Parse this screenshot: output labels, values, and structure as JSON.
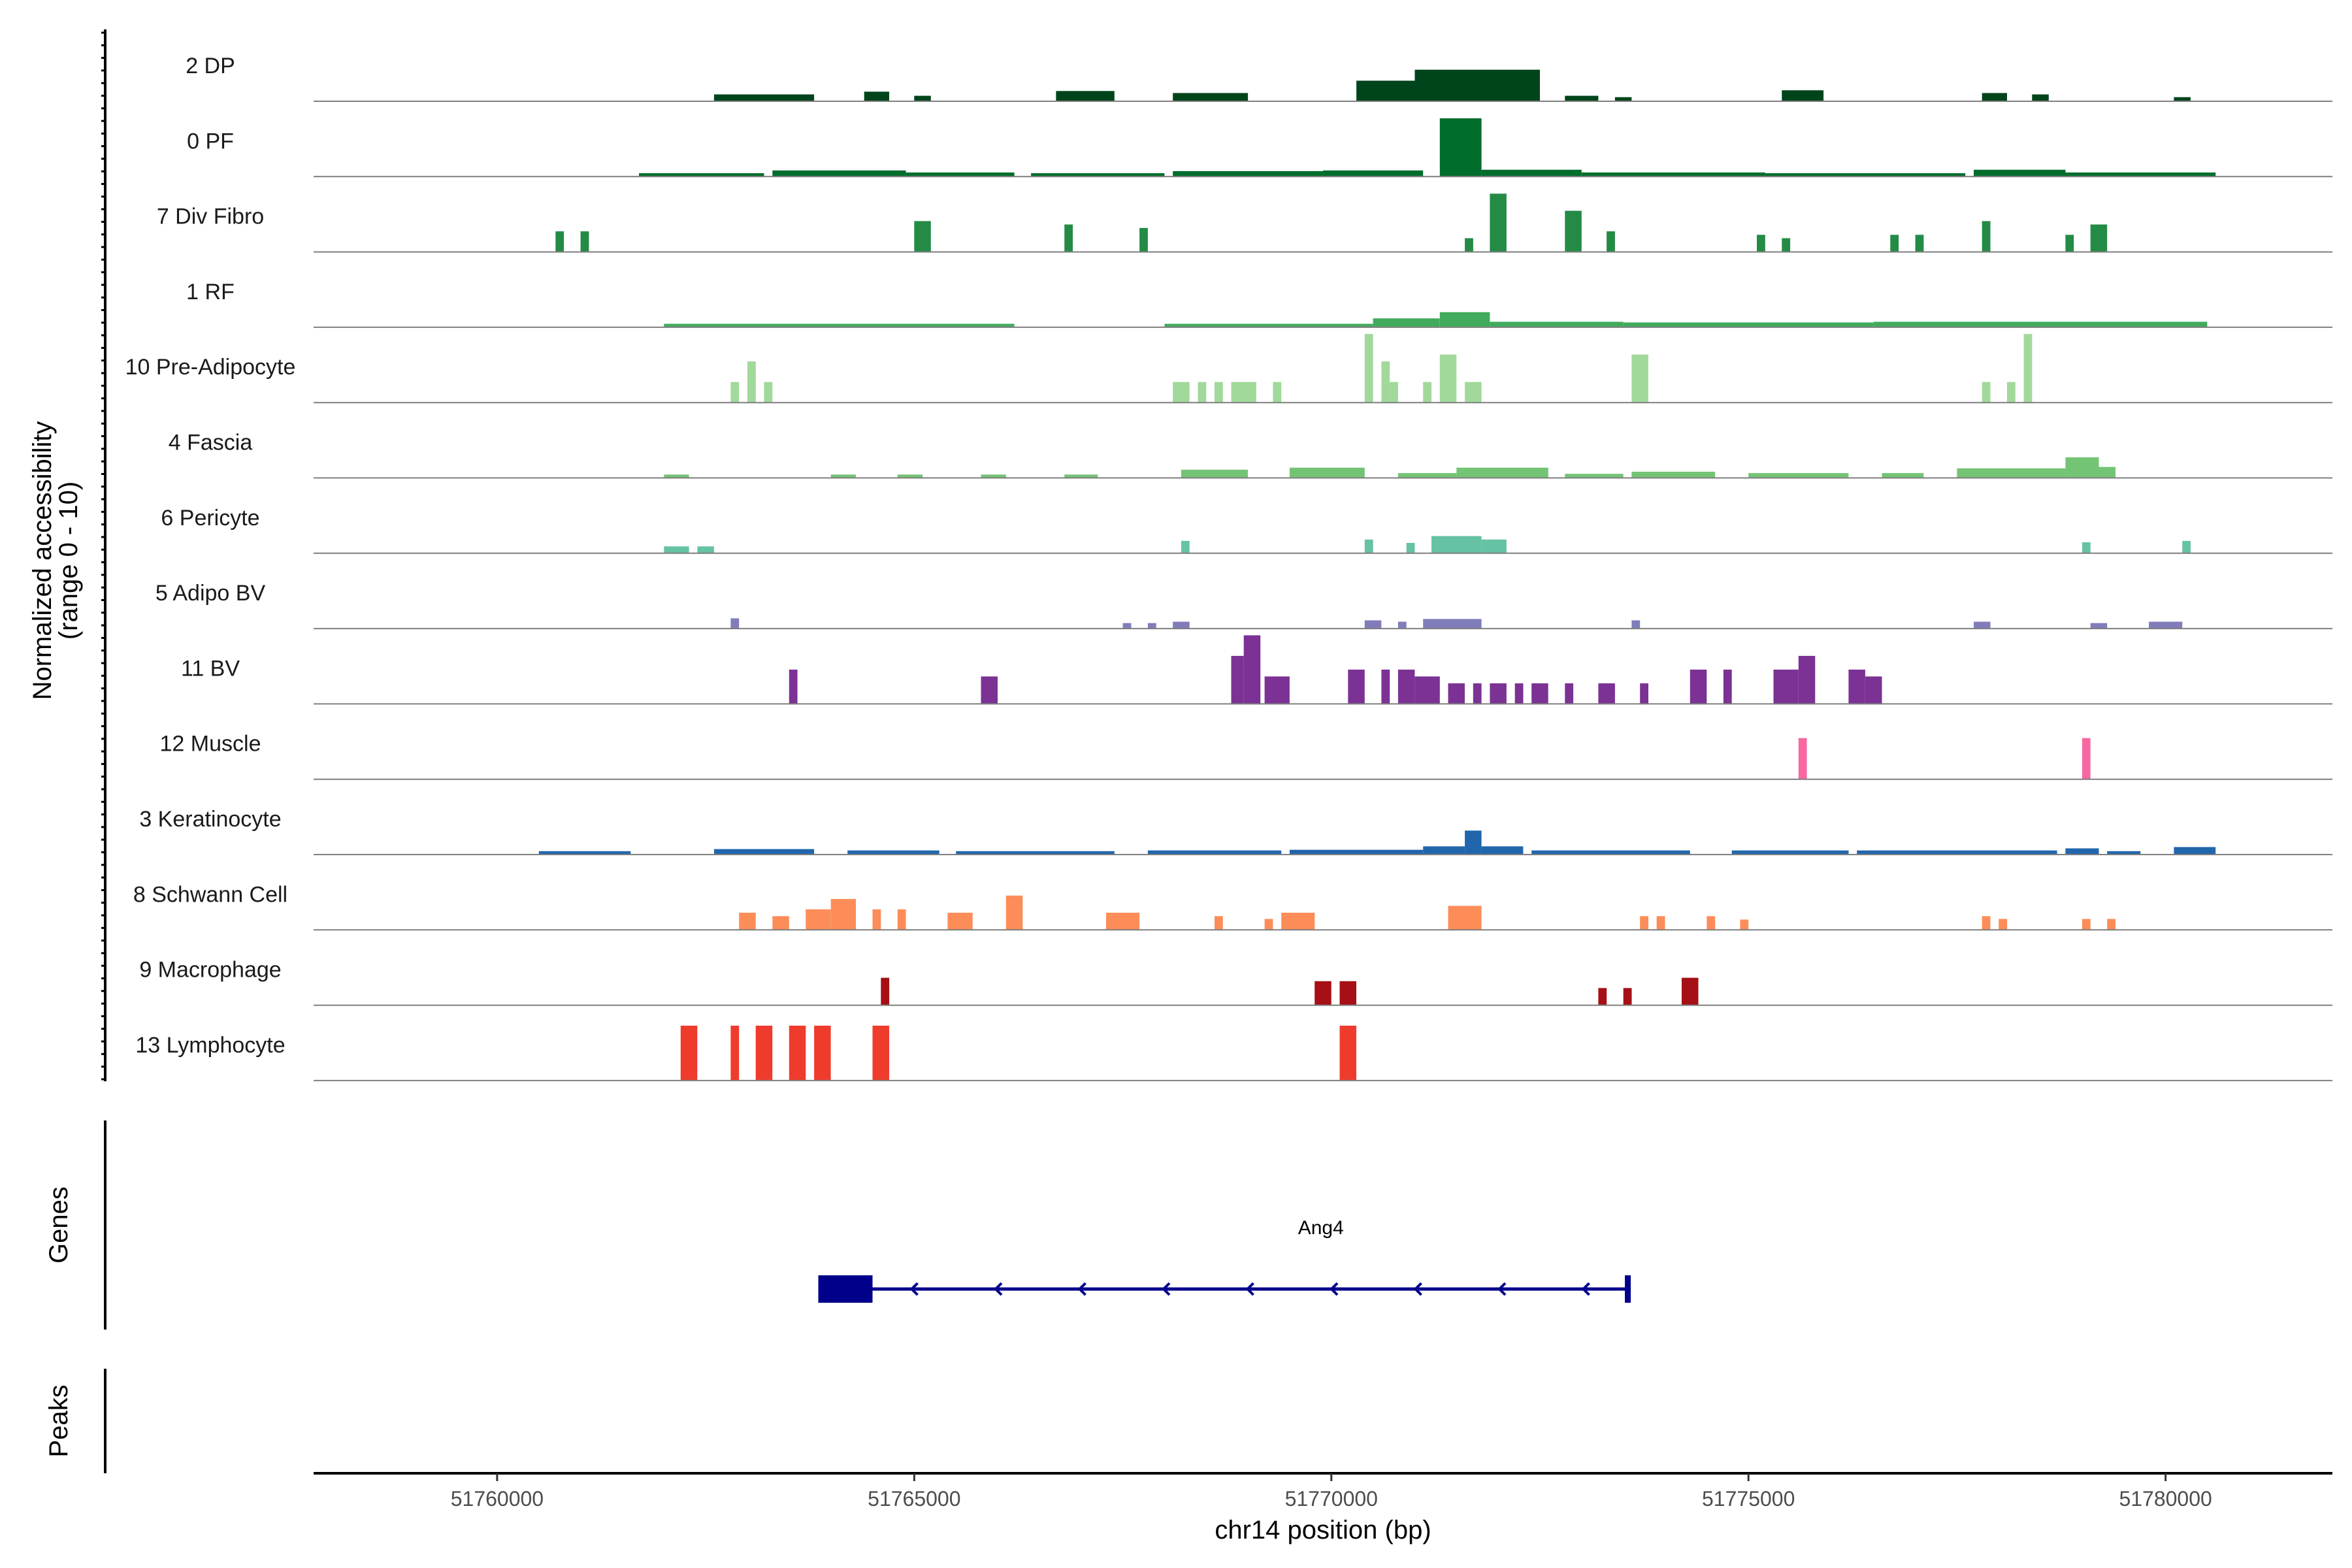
{
  "chart_data": {
    "type": "area",
    "title": "",
    "ylabel": [
      "Normalized accessibility",
      "(range 0 - 10)"
    ],
    "xlabel": "chr14 position (bp)",
    "xlim": [
      51757800,
      51782000
    ],
    "xticks": [
      "51760000",
      "51765000",
      "51770000",
      "51775000",
      "51780000"
    ],
    "xtick_values": [
      51760000,
      51765000,
      51770000,
      51775000,
      51780000
    ],
    "yrange": [
      0,
      10
    ],
    "tracks": [
      {
        "name": "2 DP",
        "color": "#00441b",
        "segments": [
          [
            51762600,
            51763800,
            1
          ],
          [
            51764400,
            51764700,
            1.4
          ],
          [
            51765000,
            51765200,
            0.8
          ],
          [
            51766700,
            51767400,
            1.5
          ],
          [
            51768100,
            51769000,
            1.2
          ],
          [
            51770300,
            51771000,
            3.0
          ],
          [
            51771000,
            51772500,
            4.6
          ],
          [
            51772800,
            51773200,
            0.8
          ],
          [
            51773400,
            51773600,
            0.6
          ],
          [
            51775400,
            51775900,
            1.6
          ],
          [
            51777800,
            51778100,
            1.2
          ],
          [
            51778400,
            51778600,
            1.0
          ],
          [
            51780100,
            51780300,
            0.6
          ]
        ]
      },
      {
        "name": "0 PF",
        "color": "#006d2c",
        "segments": [
          [
            51761700,
            51763200,
            0.5
          ],
          [
            51763300,
            51764900,
            0.9
          ],
          [
            51764900,
            51766200,
            0.6
          ],
          [
            51766400,
            51768000,
            0.5
          ],
          [
            51768100,
            51769900,
            0.8
          ],
          [
            51769900,
            51771100,
            0.9
          ],
          [
            51771300,
            51771800,
            8.5
          ],
          [
            51771800,
            51773000,
            1.0
          ],
          [
            51773000,
            51775200,
            0.6
          ],
          [
            51775200,
            51777600,
            0.5
          ],
          [
            51777700,
            51778800,
            1.0
          ],
          [
            51778800,
            51780600,
            0.6
          ]
        ]
      },
      {
        "name": "7 Div Fibro",
        "color": "#238b45",
        "segments": [
          [
            51760700,
            51760800,
            3
          ],
          [
            51761000,
            51761100,
            3
          ],
          [
            51765000,
            51765200,
            4.5
          ],
          [
            51766800,
            51766900,
            4
          ],
          [
            51767700,
            51767800,
            3.5
          ],
          [
            51771600,
            51771700,
            2
          ],
          [
            51771900,
            51772100,
            8.5
          ],
          [
            51772800,
            51773000,
            6
          ],
          [
            51773300,
            51773400,
            3
          ],
          [
            51775100,
            51775200,
            2.5
          ],
          [
            51775400,
            51775500,
            2
          ],
          [
            51776700,
            51776800,
            2.5
          ],
          [
            51777000,
            51777100,
            2.5
          ],
          [
            51777800,
            51777900,
            4.5
          ],
          [
            51778800,
            51778900,
            2.5
          ],
          [
            51779100,
            51779300,
            4
          ]
        ]
      },
      {
        "name": "1 RF",
        "color": "#41ab5d",
        "segments": [
          [
            51762000,
            51766200,
            0.5
          ],
          [
            51768000,
            51770500,
            0.5
          ],
          [
            51770500,
            51771300,
            1.3
          ],
          [
            51771300,
            51771900,
            2.2
          ],
          [
            51771900,
            51773500,
            0.8
          ],
          [
            51773500,
            51776500,
            0.7
          ],
          [
            51776500,
            51780500,
            0.8
          ]
        ]
      },
      {
        "name": "10 Pre-Adipocyte",
        "color": "#a1d99b",
        "segments": [
          [
            51762800,
            51762900,
            3
          ],
          [
            51763000,
            51763100,
            6
          ],
          [
            51763200,
            51763300,
            3
          ],
          [
            51768100,
            51768300,
            3
          ],
          [
            51768400,
            51768500,
            3
          ],
          [
            51768600,
            51768700,
            3
          ],
          [
            51768800,
            51769100,
            3
          ],
          [
            51769300,
            51769400,
            3
          ],
          [
            51770400,
            51770500,
            10
          ],
          [
            51770600,
            51770700,
            6
          ],
          [
            51770700,
            51770800,
            3
          ],
          [
            51771100,
            51771200,
            3
          ],
          [
            51771300,
            51771500,
            7
          ],
          [
            51771600,
            51771800,
            3
          ],
          [
            51773600,
            51773800,
            7
          ],
          [
            51777800,
            51777900,
            3
          ],
          [
            51778100,
            51778200,
            3
          ],
          [
            51778300,
            51778400,
            10
          ]
        ]
      },
      {
        "name": "4 Fascia",
        "color": "#74c476",
        "segments": [
          [
            51762000,
            51762300,
            0.5
          ],
          [
            51764000,
            51764300,
            0.5
          ],
          [
            51764800,
            51765100,
            0.5
          ],
          [
            51765800,
            51766100,
            0.5
          ],
          [
            51766800,
            51767200,
            0.5
          ],
          [
            51768200,
            51769000,
            1.2
          ],
          [
            51769500,
            51770400,
            1.5
          ],
          [
            51770800,
            51771500,
            0.7
          ],
          [
            51771500,
            51772600,
            1.5
          ],
          [
            51772800,
            51773500,
            0.6
          ],
          [
            51773600,
            51774600,
            0.9
          ],
          [
            51775000,
            51776200,
            0.7
          ],
          [
            51776600,
            51777100,
            0.7
          ],
          [
            51777500,
            51778800,
            1.4
          ],
          [
            51778800,
            51779200,
            3.0
          ],
          [
            51779200,
            51779400,
            1.6
          ]
        ]
      },
      {
        "name": "6 Pericyte",
        "color": "#66c2a4",
        "segments": [
          [
            51762000,
            51762300,
            1.0
          ],
          [
            51762400,
            51762600,
            1.0
          ],
          [
            51768200,
            51768300,
            1.8
          ],
          [
            51770400,
            51770500,
            2.0
          ],
          [
            51770900,
            51771000,
            1.5
          ],
          [
            51771200,
            51771800,
            2.5
          ],
          [
            51771800,
            51772100,
            2.0
          ],
          [
            51779000,
            51779100,
            1.6
          ],
          [
            51780200,
            51780300,
            1.8
          ]
        ]
      },
      {
        "name": "5 Adipo BV",
        "color": "#807dba",
        "segments": [
          [
            51762800,
            51762900,
            1.5
          ],
          [
            51767500,
            51767600,
            0.8
          ],
          [
            51767800,
            51767900,
            0.8
          ],
          [
            51768100,
            51768300,
            1.0
          ],
          [
            51770400,
            51770600,
            1.2
          ],
          [
            51770800,
            51770900,
            1.0
          ],
          [
            51771100,
            51771800,
            1.4
          ],
          [
            51773600,
            51773700,
            1.2
          ],
          [
            51777700,
            51777900,
            1.0
          ],
          [
            51779100,
            51779300,
            0.8
          ],
          [
            51779800,
            51780200,
            1.0
          ]
        ]
      },
      {
        "name": "11 BV",
        "color": "#7b3294",
        "segments": [
          [
            51763500,
            51763600,
            5
          ],
          [
            51765800,
            51766000,
            4
          ],
          [
            51768800,
            51768950,
            7
          ],
          [
            51768950,
            51769150,
            10
          ],
          [
            51769200,
            51769500,
            4
          ],
          [
            51770200,
            51770400,
            5
          ],
          [
            51770600,
            51770700,
            5
          ],
          [
            51770800,
            51771000,
            5
          ],
          [
            51771000,
            51771300,
            4
          ],
          [
            51771400,
            51771600,
            3
          ],
          [
            51771700,
            51771800,
            3
          ],
          [
            51771900,
            51772100,
            3
          ],
          [
            51772200,
            51772300,
            3
          ],
          [
            51772400,
            51772600,
            3
          ],
          [
            51772800,
            51772900,
            3
          ],
          [
            51773200,
            51773400,
            3
          ],
          [
            51773700,
            51773800,
            3
          ],
          [
            51774300,
            51774500,
            5
          ],
          [
            51774700,
            51774800,
            5
          ],
          [
            51775300,
            51775600,
            5
          ],
          [
            51775600,
            51775800,
            7
          ],
          [
            51776200,
            51776400,
            5
          ],
          [
            51776400,
            51776600,
            4
          ]
        ]
      },
      {
        "name": "12 Muscle",
        "color": "#f768a1",
        "segments": [
          [
            51775600,
            51775700,
            6
          ],
          [
            51779000,
            51779100,
            6
          ]
        ]
      },
      {
        "name": "3 Keratinocyte",
        "color": "#2166ac",
        "segments": [
          [
            51760500,
            51761600,
            0.5
          ],
          [
            51762600,
            51763800,
            0.8
          ],
          [
            51764200,
            51765300,
            0.6
          ],
          [
            51765500,
            51767400,
            0.5
          ],
          [
            51767800,
            51769400,
            0.6
          ],
          [
            51769500,
            51771100,
            0.7
          ],
          [
            51771100,
            51771600,
            1.2
          ],
          [
            51771600,
            51771800,
            3.5
          ],
          [
            51771800,
            51772300,
            1.2
          ],
          [
            51772400,
            51774300,
            0.6
          ],
          [
            51774800,
            51776200,
            0.6
          ],
          [
            51776300,
            51778700,
            0.6
          ],
          [
            51778800,
            51779200,
            0.9
          ],
          [
            51779300,
            51779700,
            0.5
          ],
          [
            51780100,
            51780600,
            1.1
          ]
        ]
      },
      {
        "name": "8 Schwann Cell",
        "color": "#fc8d59",
        "segments": [
          [
            51762900,
            51763100,
            2.5
          ],
          [
            51763300,
            51763500,
            2
          ],
          [
            51763700,
            51764000,
            3
          ],
          [
            51764000,
            51764300,
            4.5
          ],
          [
            51764500,
            51764600,
            3
          ],
          [
            51764800,
            51764900,
            3
          ],
          [
            51765400,
            51765700,
            2.5
          ],
          [
            51766100,
            51766300,
            5
          ],
          [
            51767300,
            51767700,
            2.5
          ],
          [
            51768600,
            51768700,
            2
          ],
          [
            51769200,
            51769300,
            1.6
          ],
          [
            51769400,
            51769800,
            2.5
          ],
          [
            51771400,
            51771800,
            3.5
          ],
          [
            51773700,
            51773800,
            2
          ],
          [
            51773900,
            51774000,
            2
          ],
          [
            51774500,
            51774600,
            2
          ],
          [
            51774900,
            51775000,
            1.5
          ],
          [
            51777800,
            51777900,
            2
          ],
          [
            51778000,
            51778100,
            1.6
          ],
          [
            51779000,
            51779100,
            1.6
          ],
          [
            51779300,
            51779400,
            1.6
          ]
        ]
      },
      {
        "name": "9 Macrophage",
        "color": "#a50f15",
        "segments": [
          [
            51764600,
            51764700,
            4
          ],
          [
            51769800,
            51770000,
            3.5
          ],
          [
            51770100,
            51770300,
            3.5
          ],
          [
            51773200,
            51773300,
            2.5
          ],
          [
            51773500,
            51773600,
            2.5
          ],
          [
            51774200,
            51774400,
            4
          ]
        ]
      },
      {
        "name": "13 Lymphocyte",
        "color": "#ef3b2c",
        "segments": [
          [
            51762200,
            51762400,
            8
          ],
          [
            51762800,
            51762900,
            8
          ],
          [
            51763100,
            51763300,
            8
          ],
          [
            51763500,
            51763700,
            8
          ],
          [
            51763800,
            51764000,
            8
          ],
          [
            51764500,
            51764700,
            8
          ],
          [
            51770100,
            51770300,
            8
          ]
        ]
      }
    ],
    "genes": {
      "panel_label": "Genes",
      "items": [
        {
          "name": "Ang4",
          "strand": "-",
          "start": 51763850,
          "end": 51773550,
          "cds_start": 51763850,
          "cds_end": 51764500
        }
      ]
    },
    "peaks": {
      "panel_label": "Peaks"
    }
  }
}
